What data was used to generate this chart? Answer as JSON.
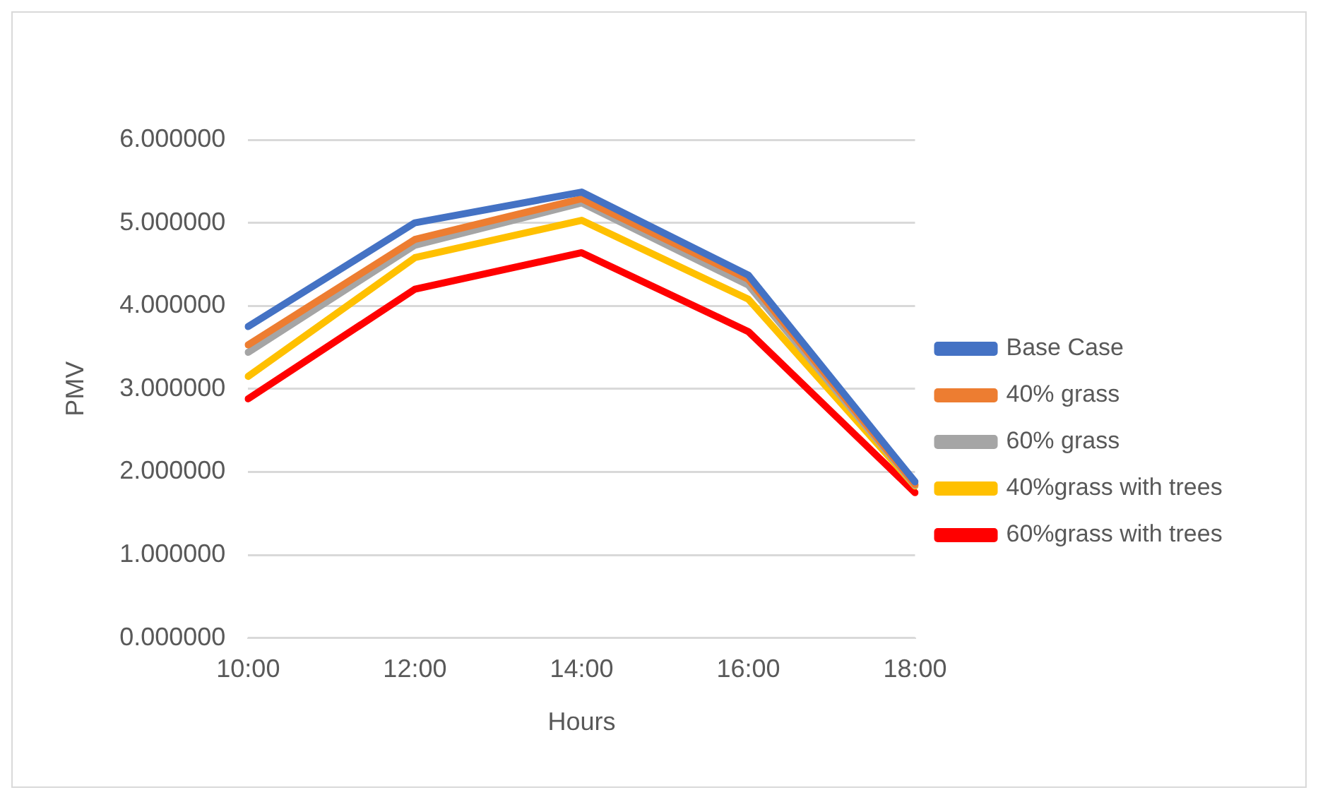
{
  "chart_data": {
    "type": "line",
    "xlabel": "Hours",
    "ylabel": "PMV",
    "categories": [
      "10:00",
      "12:00",
      "14:00",
      "16:00",
      "18:00"
    ],
    "series": [
      {
        "name": "Base Case",
        "color": "#4472c4",
        "values": [
          3.75,
          5.0,
          5.37,
          4.37,
          1.88
        ]
      },
      {
        "name": "40% grass",
        "color": "#ed7d31",
        "values": [
          3.53,
          4.8,
          5.29,
          4.32,
          1.85
        ]
      },
      {
        "name": "60% grass",
        "color": "#a5a5a5",
        "values": [
          3.44,
          4.73,
          5.24,
          4.25,
          1.84
        ]
      },
      {
        "name": "40%grass with trees",
        "color": "#ffc000",
        "values": [
          3.15,
          4.58,
          5.03,
          4.08,
          1.83
        ]
      },
      {
        "name": "60%grass with trees",
        "color": "#ff0000",
        "values": [
          2.88,
          4.2,
          4.64,
          3.69,
          1.75
        ]
      }
    ],
    "ylim": [
      0,
      6
    ],
    "yticks": [
      {
        "value": 0,
        "label": "0.000000"
      },
      {
        "value": 1,
        "label": "1.000000"
      },
      {
        "value": 2,
        "label": "2.000000"
      },
      {
        "value": 3,
        "label": "3.000000"
      },
      {
        "value": 4,
        "label": "4.000000"
      },
      {
        "value": 5,
        "label": "5.000000"
      },
      {
        "value": 6,
        "label": "6.000000"
      }
    ],
    "grid": "y",
    "legend": "right",
    "marker": "none",
    "line_style": "solid"
  }
}
